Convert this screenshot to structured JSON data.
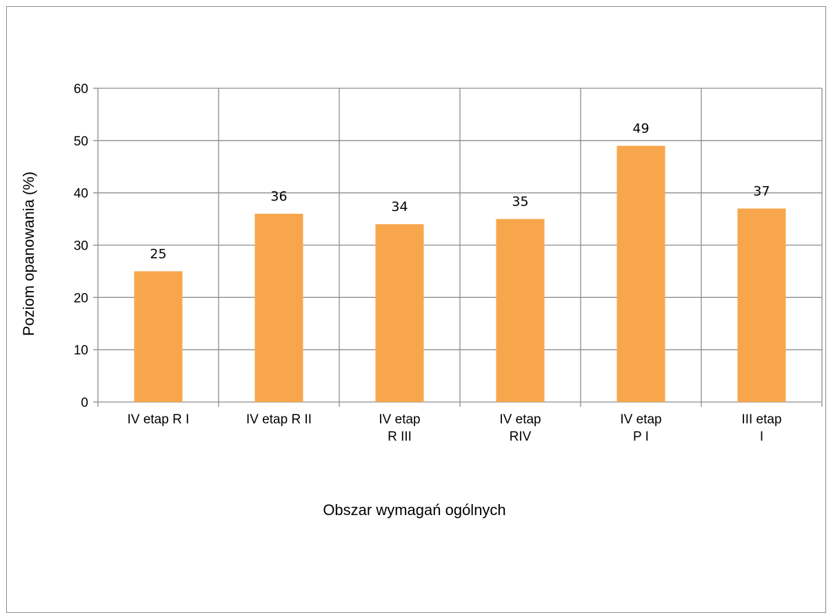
{
  "chart_data": {
    "type": "bar",
    "title": "",
    "xlabel": "Obszar wymagań ogólnych",
    "ylabel": "Poziom opanowania (%)",
    "ylim": [
      0,
      60
    ],
    "yticks": [
      0,
      10,
      20,
      30,
      40,
      50,
      60
    ],
    "grid": "on",
    "categories": [
      [
        "IV etap R I"
      ],
      [
        "IV etap R II"
      ],
      [
        "IV etap",
        "R III"
      ],
      [
        "IV etap",
        "RIV"
      ],
      [
        "IV etap",
        "P I"
      ],
      [
        "III etap",
        "I"
      ]
    ],
    "values": [
      25,
      36,
      34,
      35,
      49,
      37
    ],
    "data_labels": [
      "25",
      "36",
      "34",
      "35",
      "49",
      "37"
    ],
    "colors": {
      "bar": "#F8A64C",
      "grid": "#8c8c8c",
      "axis": "#8c8c8c"
    }
  }
}
